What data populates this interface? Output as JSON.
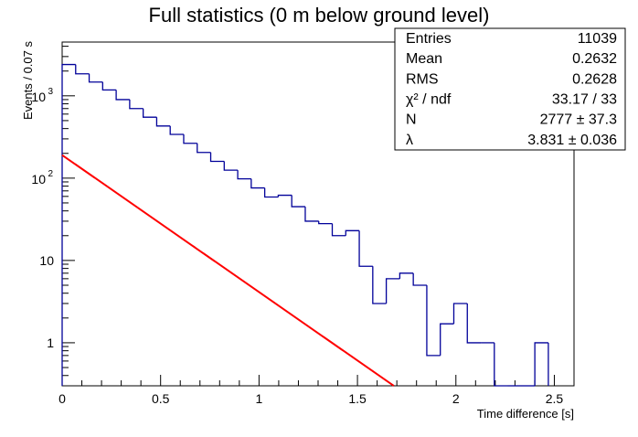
{
  "chart_data": {
    "type": "histogram",
    "title": "Full statistics (0 m below ground level)",
    "xlabel": "Time difference [s]",
    "ylabel": "Events / 0.07 s",
    "xlim": [
      0,
      2.6
    ],
    "ylim": [
      0.3,
      4500
    ],
    "yscale": "log",
    "grid": false,
    "bin_width": 0.0686,
    "x_ticks": [
      {
        "v": 0,
        "label": "0"
      },
      {
        "v": 0.5,
        "label": "0.5"
      },
      {
        "v": 1,
        "label": "1"
      },
      {
        "v": 1.5,
        "label": "1.5"
      },
      {
        "v": 2,
        "label": "2"
      },
      {
        "v": 2.5,
        "label": "2.5"
      }
    ],
    "y_ticks": [
      {
        "v": 1,
        "label": "1"
      },
      {
        "v": 10,
        "label": "10"
      },
      {
        "v": 100,
        "label": "10",
        "exp": "2"
      },
      {
        "v": 1000,
        "label": "10",
        "exp": "3"
      }
    ],
    "histogram": {
      "color": "#000099",
      "values": [
        2400,
        1850,
        1470,
        1180,
        900,
        700,
        550,
        430,
        340,
        265,
        205,
        160,
        125,
        98,
        76,
        59,
        62,
        45,
        30,
        28,
        20,
        23,
        8.5,
        3,
        6,
        7,
        5,
        0.7,
        1.7,
        3,
        1,
        1,
        0.01,
        0.01,
        0.01,
        1
      ]
    },
    "fit": {
      "color": "#ff0000",
      "function": "N*exp(-lambda*t)*bin_width",
      "N": 2777,
      "lambda": 3.831
    },
    "stats": {
      "rows": [
        {
          "key": "Entries",
          "value": "11039"
        },
        {
          "key": "Mean",
          "value": "0.2632"
        },
        {
          "key": "RMS",
          "value": "0.2628"
        },
        {
          "key": "χ² / ndf",
          "value": "33.17 / 33"
        },
        {
          "key": "N",
          "value": "2777 ± 37.3"
        },
        {
          "key": "λ",
          "value": "3.831 ± 0.036"
        }
      ]
    }
  }
}
